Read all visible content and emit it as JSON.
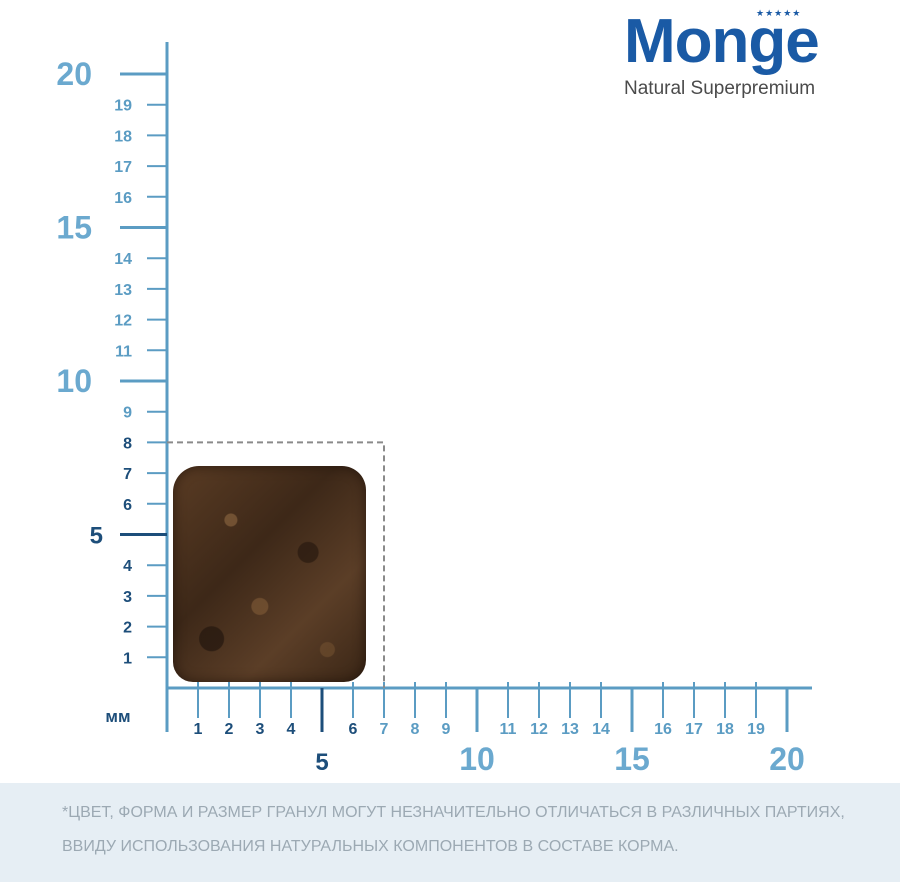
{
  "brand": {
    "name": "Monge",
    "stars": "★★★★★",
    "tagline": "Natural Superpremium"
  },
  "footer": {
    "line1": "*ЦВЕТ, ФОРМА И РАЗМЕР ГРАНУЛ МОГУТ НЕЗНАЧИТЕЛЬНО ОТЛИЧАТЬСЯ В РАЗЛИЧНЫХ ПАРТИЯХ,",
    "line2": "ВВИДУ ИСПОЛЬЗОВАНИЯ НАТУРАЛЬНЫХ КОМПОНЕНТОВ В СОСТАВЕ КОРМА."
  },
  "colors": {
    "axis": "#5b9cc3",
    "small_label_light": "#5b9cc3",
    "label_dark": "#1d4e7a",
    "major_light": "#6ba9cf",
    "dash": "#8a8a8a",
    "brand": "#1a5aa5"
  },
  "chart_data": {
    "type": "scatter",
    "unit_label": "мм",
    "x_axis": {
      "range": [
        0,
        21
      ],
      "minor_labels": [
        "1",
        "2",
        "3",
        "4",
        "6",
        "7",
        "8",
        "9",
        "11",
        "12",
        "13",
        "14",
        "16",
        "17",
        "18",
        "19"
      ],
      "major_labels": [
        "5",
        "10",
        "15",
        "20"
      ]
    },
    "y_axis": {
      "range": [
        0,
        21
      ],
      "minor_labels": [
        "1",
        "2",
        "3",
        "4",
        "6",
        "7",
        "8",
        "9",
        "11",
        "12",
        "13",
        "14",
        "16",
        "17",
        "18",
        "19"
      ],
      "major_labels": [
        "5",
        "10",
        "15",
        "20"
      ]
    },
    "highlight_box": {
      "width_mm": 7,
      "height_mm": 8
    },
    "subject": "kibble"
  }
}
